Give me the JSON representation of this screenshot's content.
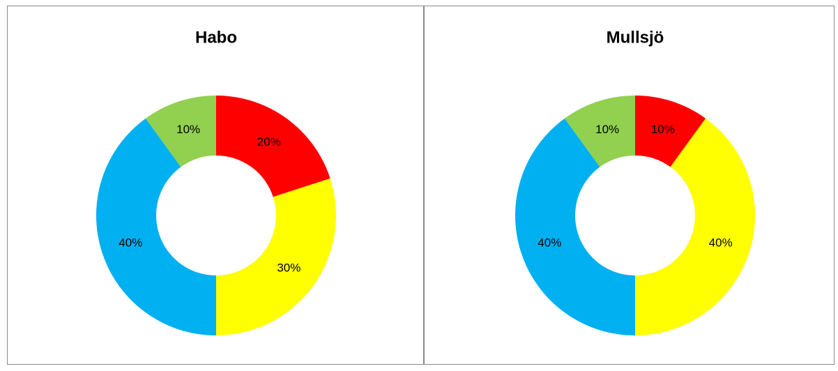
{
  "chart_data": [
    {
      "type": "donut",
      "title": "Habo",
      "values": [
        20,
        30,
        40,
        10
      ],
      "value_labels": [
        "20%",
        "30%",
        "40%",
        "10%"
      ],
      "colors": [
        "#ff0000",
        "#ffff00",
        "#00b0f0",
        "#92d050"
      ]
    },
    {
      "type": "donut",
      "title": "Mullsjö",
      "values": [
        10,
        40,
        40,
        10
      ],
      "value_labels": [
        "10%",
        "40%",
        "40%",
        "10%"
      ],
      "colors": [
        "#ff0000",
        "#ffff00",
        "#00b0f0",
        "#92d050"
      ]
    }
  ]
}
